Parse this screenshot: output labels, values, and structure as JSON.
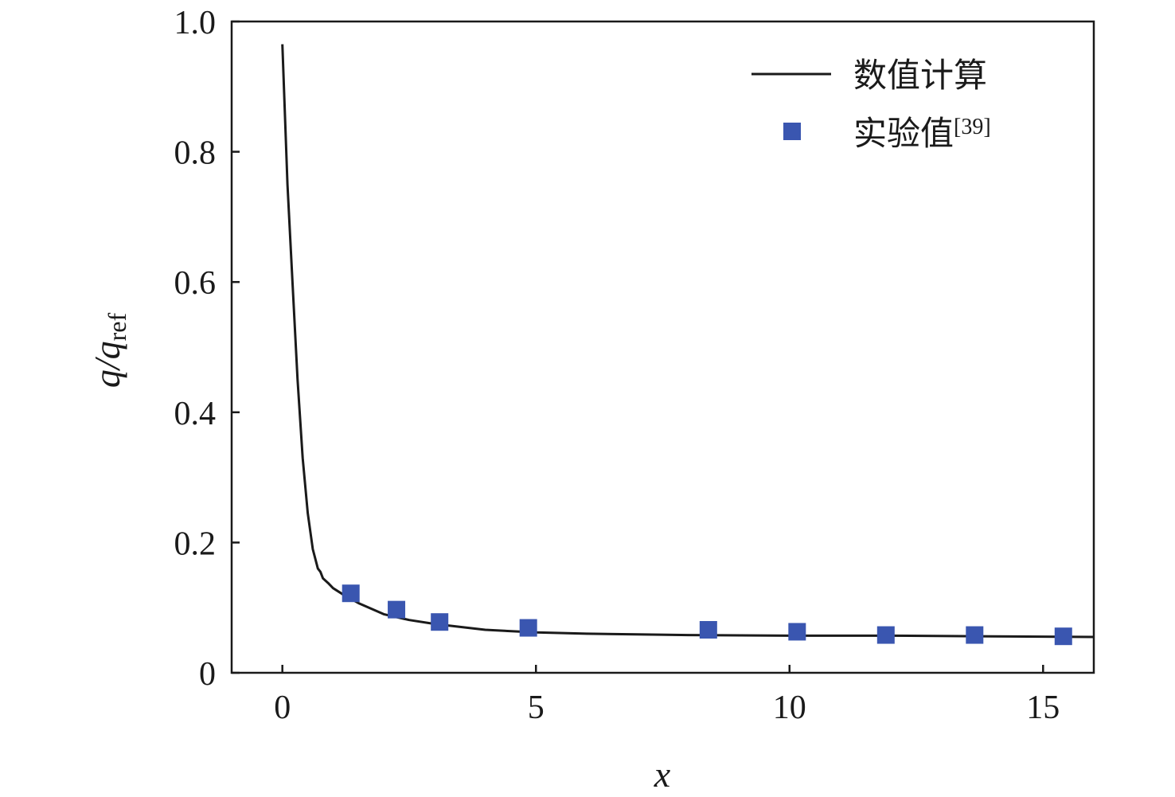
{
  "chart_data": {
    "type": "line",
    "xlabel": "x",
    "ylabel": {
      "main": "q/q",
      "sub": "ref"
    },
    "xlim": [
      -1,
      16
    ],
    "ylim": [
      0,
      1.0
    ],
    "xticks": [
      0,
      5,
      10,
      15
    ],
    "xtick_labels": [
      "0",
      "5",
      "10",
      "15"
    ],
    "yticks": [
      0,
      0.2,
      0.4,
      0.6,
      0.8,
      1.0
    ],
    "ytick_labels": [
      "0",
      "0.2",
      "0.4",
      "0.6",
      "0.8",
      "1.0"
    ],
    "grid": false,
    "legend_position": "top-right",
    "series": [
      {
        "name": "数值计算",
        "kind": "line",
        "color": "#1a1a1a",
        "x": [
          0.0,
          0.1,
          0.2,
          0.3,
          0.4,
          0.5,
          0.6,
          0.7,
          0.75,
          0.8,
          0.9,
          1.0,
          1.2,
          1.5,
          2.0,
          2.5,
          3.0,
          4.0,
          5.0,
          6.0,
          7.0,
          8.0,
          10.0,
          12.0,
          14.0,
          16.0
        ],
        "y": [
          0.965,
          0.75,
          0.6,
          0.45,
          0.33,
          0.245,
          0.19,
          0.16,
          0.155,
          0.145,
          0.138,
          0.13,
          0.12,
          0.107,
          0.09,
          0.081,
          0.075,
          0.066,
          0.062,
          0.06,
          0.059,
          0.058,
          0.057,
          0.057,
          0.056,
          0.055
        ]
      },
      {
        "name": "实验值",
        "name_sup": "[39]",
        "kind": "scatter",
        "marker": "square",
        "color": "#3a56b0",
        "x": [
          1.35,
          2.25,
          3.1,
          4.85,
          8.4,
          10.15,
          11.9,
          13.65,
          15.4
        ],
        "y": [
          0.122,
          0.097,
          0.078,
          0.069,
          0.066,
          0.063,
          0.058,
          0.058,
          0.056
        ]
      }
    ]
  }
}
